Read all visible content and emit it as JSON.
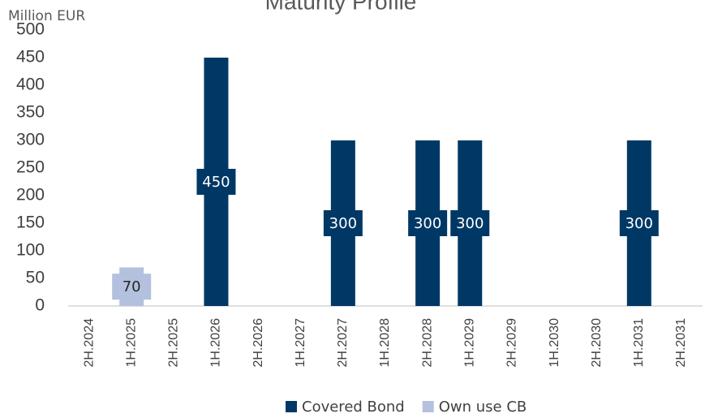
{
  "chart_data": {
    "type": "stacked_bar",
    "title": "Maturity Profile",
    "y_axis_label": "Million EUR",
    "categories": [
      "2H.2024",
      "1H.2025",
      "2H.2025",
      "1H.2026",
      "2H.2026",
      "1H.2027",
      "2H.2027",
      "1H.2028",
      "2H.2028",
      "1H.2029",
      "2H.2029",
      "1H.2030",
      "2H.2030",
      "1H.2031",
      "2H.2031"
    ],
    "series": [
      {
        "name": "Covered Bond",
        "color": "#003865",
        "label_color": "#ffffff",
        "values": [
          null,
          null,
          null,
          450,
          null,
          null,
          300,
          null,
          300,
          300,
          null,
          null,
          null,
          300,
          null
        ]
      },
      {
        "name": "Own use CB",
        "color": "#b4c1de",
        "label_color": "#262626",
        "values": [
          null,
          70,
          null,
          null,
          null,
          null,
          null,
          null,
          null,
          null,
          null,
          null,
          null,
          null,
          null
        ]
      }
    ],
    "ylim": [
      0,
      500
    ],
    "yticks": [
      0,
      50,
      100,
      150,
      200,
      250,
      300,
      350,
      400,
      450,
      500
    ],
    "grid": false,
    "legend": "bottom"
  }
}
